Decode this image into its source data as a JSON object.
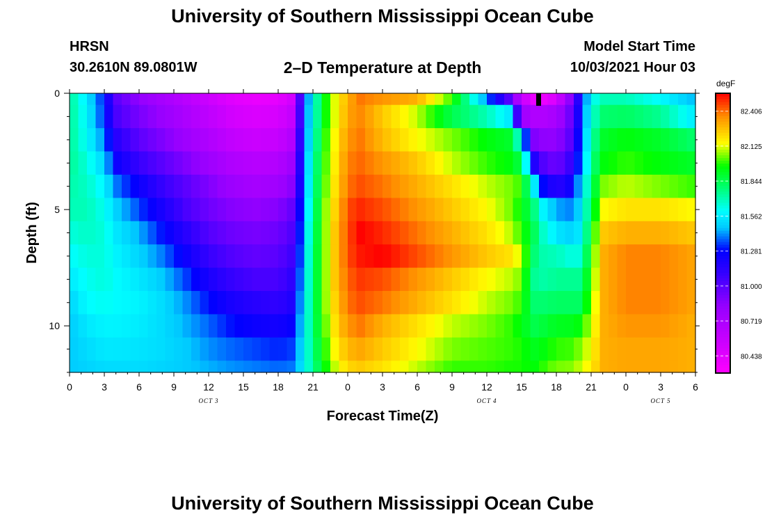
{
  "header": {
    "title": "University of Southern Mississippi Ocean Cube",
    "station": "HRSN",
    "coords": "30.2610N  89.0801W",
    "plot_title": "2–D Temperature at Depth",
    "start_label": "Model Start Time",
    "start_value": "10/03/2021 Hour 03"
  },
  "footer": {
    "title": "University of Southern Mississippi Ocean Cube"
  },
  "chart_data": {
    "type": "heatmap",
    "title": "2–D Temperature at Depth",
    "xlabel": "Forecast Time(Z)",
    "ylabel": "Depth (ft)",
    "x_range_hours": [
      0,
      54
    ],
    "y_range_ft": [
      0,
      12
    ],
    "x_ticks": [
      {
        "h": 0,
        "label": "0"
      },
      {
        "h": 3,
        "label": "3"
      },
      {
        "h": 6,
        "label": "6"
      },
      {
        "h": 9,
        "label": "9"
      },
      {
        "h": 12,
        "label": "12"
      },
      {
        "h": 15,
        "label": "15"
      },
      {
        "h": 18,
        "label": "18"
      },
      {
        "h": 21,
        "label": "21"
      },
      {
        "h": 24,
        "label": "0"
      },
      {
        "h": 27,
        "label": "3"
      },
      {
        "h": 30,
        "label": "6"
      },
      {
        "h": 33,
        "label": "9"
      },
      {
        "h": 36,
        "label": "12"
      },
      {
        "h": 39,
        "label": "15"
      },
      {
        "h": 42,
        "label": "18"
      },
      {
        "h": 45,
        "label": "21"
      },
      {
        "h": 48,
        "label": "0"
      },
      {
        "h": 51,
        "label": "3"
      },
      {
        "h": 54,
        "label": "6"
      }
    ],
    "day_labels": [
      {
        "h": 12,
        "label": "OCT 3"
      },
      {
        "h": 36,
        "label": "OCT 4"
      },
      {
        "h": 51,
        "label": "OCT 5"
      }
    ],
    "y_ticks": [
      {
        "v": 0,
        "label": "0"
      },
      {
        "v": 5,
        "label": "5"
      },
      {
        "v": 10,
        "label": "10"
      }
    ],
    "colorbar": {
      "unit": "degF",
      "min": 80.3,
      "max": 82.55,
      "ticks": [
        "80.438",
        "80.719",
        "81.000",
        "81.281",
        "81.562",
        "81.844",
        "82.125",
        "82.406"
      ]
    },
    "depth_levels_ft": [
      0,
      1,
      2,
      3,
      4,
      5,
      6,
      7,
      8,
      9,
      10,
      11,
      12
    ],
    "time_keys_h": [
      0,
      1.5,
      3,
      4,
      6,
      8,
      10,
      12,
      14,
      16,
      18,
      19.5,
      20,
      21,
      22,
      23,
      24,
      25,
      27,
      30,
      33,
      36,
      38,
      39,
      40,
      41,
      42,
      43,
      44,
      45,
      46,
      48,
      51,
      54
    ],
    "temperature_degF": [
      [
        81.75,
        81.55,
        81.3,
        81.0,
        80.85,
        80.75,
        80.65,
        80.55,
        80.45,
        80.4,
        80.42,
        80.55,
        81.2,
        81.6,
        81.95,
        82.15,
        82.3,
        82.4,
        82.35,
        82.3,
        82.0,
        81.4,
        81.0,
        80.6,
        80.4,
        80.4,
        80.5,
        80.8,
        81.2,
        81.6,
        81.7,
        81.7,
        81.6,
        81.45
      ],
      [
        81.75,
        81.58,
        81.32,
        81.05,
        80.92,
        80.82,
        80.72,
        80.62,
        80.52,
        80.48,
        80.5,
        80.62,
        81.22,
        81.62,
        81.95,
        82.15,
        82.32,
        82.38,
        82.25,
        82.1,
        81.85,
        81.7,
        81.55,
        80.8,
        80.7,
        80.7,
        80.75,
        80.9,
        81.25,
        81.65,
        81.8,
        81.82,
        81.75,
        81.55
      ],
      [
        81.75,
        81.6,
        81.4,
        81.15,
        81.0,
        80.9,
        80.8,
        80.7,
        80.6,
        80.56,
        80.58,
        80.72,
        81.25,
        81.65,
        81.98,
        82.18,
        82.35,
        82.4,
        82.28,
        82.15,
        82.05,
        81.95,
        81.9,
        81.6,
        80.9,
        80.85,
        80.85,
        80.95,
        81.3,
        81.7,
        81.9,
        81.95,
        81.9,
        81.8
      ],
      [
        81.75,
        81.65,
        81.5,
        81.25,
        81.1,
        81.0,
        80.9,
        80.8,
        80.7,
        80.66,
        80.68,
        80.82,
        81.28,
        81.7,
        82.0,
        82.2,
        82.38,
        82.42,
        82.35,
        82.25,
        82.1,
        82.0,
        81.95,
        81.85,
        81.2,
        81.0,
        80.95,
        81.05,
        81.35,
        81.75,
        81.95,
        82.0,
        81.95,
        81.9
      ],
      [
        81.72,
        81.68,
        81.58,
        81.4,
        81.25,
        81.1,
        81.0,
        80.9,
        80.8,
        80.75,
        80.78,
        80.9,
        81.3,
        81.72,
        82.02,
        82.22,
        82.4,
        82.45,
        82.4,
        82.3,
        82.2,
        82.1,
        82.05,
        82.0,
        81.6,
        81.25,
        81.15,
        81.2,
        81.45,
        81.8,
        82.05,
        82.1,
        82.05,
        82.0
      ],
      [
        81.7,
        81.7,
        81.62,
        81.5,
        81.35,
        81.2,
        81.05,
        80.95,
        80.88,
        80.85,
        80.88,
        81.0,
        81.35,
        81.75,
        82.05,
        82.25,
        82.45,
        82.5,
        82.45,
        82.35,
        82.25,
        82.15,
        82.05,
        81.95,
        81.8,
        81.55,
        81.45,
        81.4,
        81.5,
        81.85,
        82.15,
        82.2,
        82.2,
        82.15
      ],
      [
        81.65,
        81.68,
        81.65,
        81.55,
        81.45,
        81.3,
        81.15,
        81.02,
        80.95,
        80.92,
        80.95,
        81.05,
        81.4,
        81.78,
        82.05,
        82.28,
        82.45,
        82.55,
        82.5,
        82.4,
        82.3,
        82.2,
        82.1,
        82.0,
        81.85,
        81.65,
        81.55,
        81.5,
        81.55,
        81.9,
        82.25,
        82.3,
        82.3,
        82.25
      ],
      [
        81.6,
        81.65,
        81.65,
        81.58,
        81.5,
        81.4,
        81.25,
        81.1,
        81.02,
        80.98,
        81.0,
        81.1,
        81.42,
        81.8,
        82.05,
        82.28,
        82.45,
        82.52,
        82.55,
        82.45,
        82.35,
        82.25,
        82.2,
        82.1,
        81.8,
        81.7,
        81.7,
        81.65,
        81.65,
        81.95,
        82.3,
        82.38,
        82.38,
        82.32
      ],
      [
        81.55,
        81.62,
        81.65,
        81.6,
        81.55,
        81.48,
        81.35,
        81.2,
        81.1,
        81.05,
        81.05,
        81.15,
        81.45,
        81.8,
        82.05,
        82.28,
        82.42,
        82.48,
        82.45,
        82.35,
        82.25,
        82.15,
        82.1,
        82.05,
        81.75,
        81.72,
        81.75,
        81.75,
        81.75,
        82.0,
        82.3,
        82.38,
        82.38,
        82.32
      ],
      [
        81.5,
        81.6,
        81.62,
        81.6,
        81.58,
        81.52,
        81.42,
        81.3,
        81.2,
        81.15,
        81.12,
        81.2,
        81.48,
        81.8,
        82.05,
        82.25,
        82.4,
        82.45,
        82.4,
        82.3,
        82.2,
        82.1,
        82.05,
        82.0,
        81.8,
        81.8,
        81.82,
        81.82,
        81.82,
        82.05,
        82.3,
        82.38,
        82.38,
        82.32
      ],
      [
        81.48,
        81.55,
        81.58,
        81.58,
        81.56,
        81.52,
        81.45,
        81.38,
        81.3,
        81.25,
        81.22,
        81.28,
        81.5,
        81.8,
        82.02,
        82.22,
        82.35,
        82.4,
        82.3,
        82.2,
        82.1,
        82.05,
        82.0,
        81.95,
        81.85,
        81.88,
        81.92,
        81.92,
        81.95,
        82.1,
        82.3,
        82.35,
        82.35,
        82.3
      ],
      [
        81.48,
        81.52,
        81.55,
        81.55,
        81.54,
        81.52,
        81.48,
        81.42,
        81.38,
        81.35,
        81.32,
        81.35,
        81.52,
        81.78,
        81.98,
        82.18,
        82.28,
        82.32,
        82.25,
        82.15,
        82.05,
        82.02,
        82.0,
        81.98,
        81.92,
        81.95,
        82.0,
        82.0,
        82.05,
        82.15,
        82.3,
        82.32,
        82.32,
        82.3
      ],
      [
        81.48,
        81.5,
        81.52,
        81.52,
        81.52,
        81.5,
        81.48,
        81.45,
        81.42,
        81.4,
        81.38,
        81.4,
        81.55,
        81.75,
        81.95,
        82.12,
        82.22,
        82.25,
        82.2,
        82.1,
        82.0,
        82.0,
        81.98,
        81.98,
        81.95,
        82.0,
        82.05,
        82.05,
        82.1,
        82.18,
        82.3,
        82.32,
        82.32,
        82.3
      ]
    ]
  }
}
